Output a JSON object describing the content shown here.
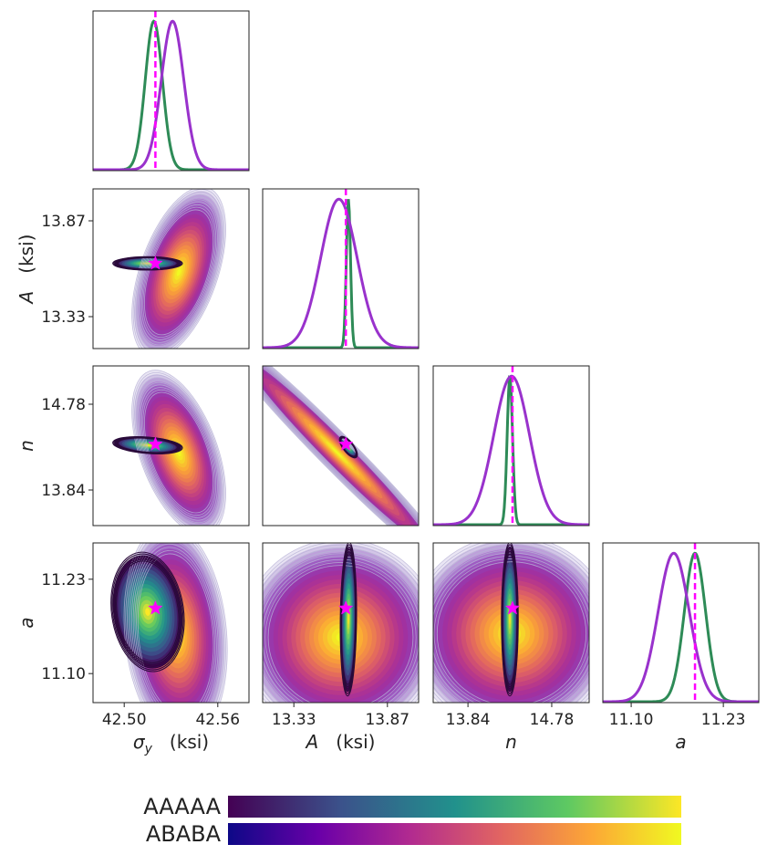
{
  "chart_data": {
    "type": "corner",
    "description_free": true,
    "parameters": [
      {
        "key": "sy",
        "symbol": "σ",
        "subscript": "y",
        "unit": "(ksi)",
        "italic": true,
        "ticks": [
          "42.50",
          "42.56"
        ],
        "tick_values": [
          42.5,
          42.56
        ],
        "range": [
          42.48,
          42.58
        ],
        "marker": 42.52
      },
      {
        "key": "A",
        "symbol": "A",
        "subscript": "",
        "unit": "(ksi)",
        "italic": true,
        "ticks": [
          "13.33",
          "13.87"
        ],
        "tick_values": [
          13.33,
          13.87
        ],
        "range": [
          13.15,
          14.05
        ],
        "marker": 13.63
      },
      {
        "key": "n",
        "symbol": "n",
        "subscript": "",
        "unit": "",
        "italic": true,
        "ticks": [
          "13.84",
          "14.78"
        ],
        "tick_values": [
          13.84,
          14.78
        ],
        "range": [
          13.45,
          15.2
        ],
        "marker": 14.34
      },
      {
        "key": "a",
        "symbol": "a",
        "subscript": "",
        "unit": "",
        "italic": true,
        "ticks": [
          "11.10",
          "11.23"
        ],
        "tick_values": [
          11.1,
          11.23
        ],
        "range": [
          11.06,
          11.28
        ],
        "marker": 11.19
      }
    ],
    "series": [
      {
        "name": "AAAAA",
        "colormap": "viridis",
        "line_color": "#2e8b57"
      },
      {
        "name": "ABABA",
        "colormap": "plasma",
        "line_color": "#9932cc"
      }
    ],
    "marginals": [
      {
        "param": "sy",
        "curves": [
          {
            "series": "AAAAA",
            "mean": 42.519,
            "sd": 0.0055
          },
          {
            "series": "ABABA",
            "mean": 42.531,
            "sd": 0.0072
          }
        ]
      },
      {
        "param": "A",
        "curves": [
          {
            "series": "AAAAA",
            "mean": 13.645,
            "sd": 0.012
          },
          {
            "series": "ABABA",
            "mean": 13.59,
            "sd": 0.105
          }
        ]
      },
      {
        "param": "n",
        "curves": [
          {
            "series": "AAAAA",
            "mean": 14.31,
            "sd": 0.03
          },
          {
            "series": "ABABA",
            "mean": 14.33,
            "sd": 0.2
          }
        ]
      },
      {
        "param": "a",
        "curves": [
          {
            "series": "AAAAA",
            "mean": 11.19,
            "sd": 0.015
          },
          {
            "series": "ABABA",
            "mean": 11.16,
            "sd": 0.022
          }
        ]
      }
    ],
    "joints": [
      {
        "x": "sy",
        "y": "A",
        "contours": [
          {
            "series": "ABABA",
            "mx": 42.535,
            "my": 13.58,
            "sx": 0.01,
            "sy": 0.16,
            "rho": 0.5
          },
          {
            "series": "AAAAA",
            "mx": 42.515,
            "my": 13.63,
            "sx": 0.0095,
            "sy": 0.016,
            "rho": 0.0
          }
        ]
      },
      {
        "x": "sy",
        "y": "n",
        "contours": [
          {
            "series": "ABABA",
            "mx": 42.535,
            "my": 14.25,
            "sx": 0.01,
            "sy": 0.3,
            "rho": -0.5
          },
          {
            "series": "AAAAA",
            "mx": 42.515,
            "my": 14.33,
            "sx": 0.0095,
            "sy": 0.04,
            "rho": -0.3
          }
        ]
      },
      {
        "x": "A",
        "y": "n",
        "contours": [
          {
            "series": "ABABA",
            "mx": 13.58,
            "my": 14.25,
            "sx": 0.24,
            "sy": 0.46,
            "rho": -0.98
          },
          {
            "series": "AAAAA",
            "mx": 13.645,
            "my": 14.31,
            "sx": 0.022,
            "sy": 0.05,
            "rho": -0.7
          }
        ]
      },
      {
        "x": "sy",
        "y": "a",
        "contours": [
          {
            "series": "ABABA",
            "mx": 42.533,
            "my": 11.155,
            "sx": 0.011,
            "sy": 0.05,
            "rho": -0.15
          },
          {
            "series": "AAAAA",
            "mx": 42.515,
            "my": 11.185,
            "sx": 0.01,
            "sy": 0.035,
            "rho": -0.15
          }
        ]
      },
      {
        "x": "A",
        "y": "a",
        "contours": [
          {
            "series": "ABABA",
            "mx": 13.6,
            "my": 11.15,
            "sx": 0.19,
            "sy": 0.045,
            "rho": 0.0
          },
          {
            "series": "AAAAA",
            "mx": 13.645,
            "my": 11.175,
            "sx": 0.02,
            "sy": 0.045,
            "rho": 0.1
          }
        ]
      },
      {
        "x": "n",
        "y": "a",
        "contours": [
          {
            "series": "ABABA",
            "mx": 14.33,
            "my": 11.155,
            "sx": 0.38,
            "sy": 0.045,
            "rho": 0.0
          },
          {
            "series": "AAAAA",
            "mx": 14.31,
            "my": 11.175,
            "sx": 0.04,
            "sy": 0.045,
            "rho": 0.0
          }
        ]
      }
    ],
    "marker_color": "#ff00ff"
  },
  "legend": {
    "items": [
      {
        "label": "AAAAA",
        "colormap": "viridis"
      },
      {
        "label": "ABABA",
        "colormap": "plasma"
      }
    ]
  }
}
